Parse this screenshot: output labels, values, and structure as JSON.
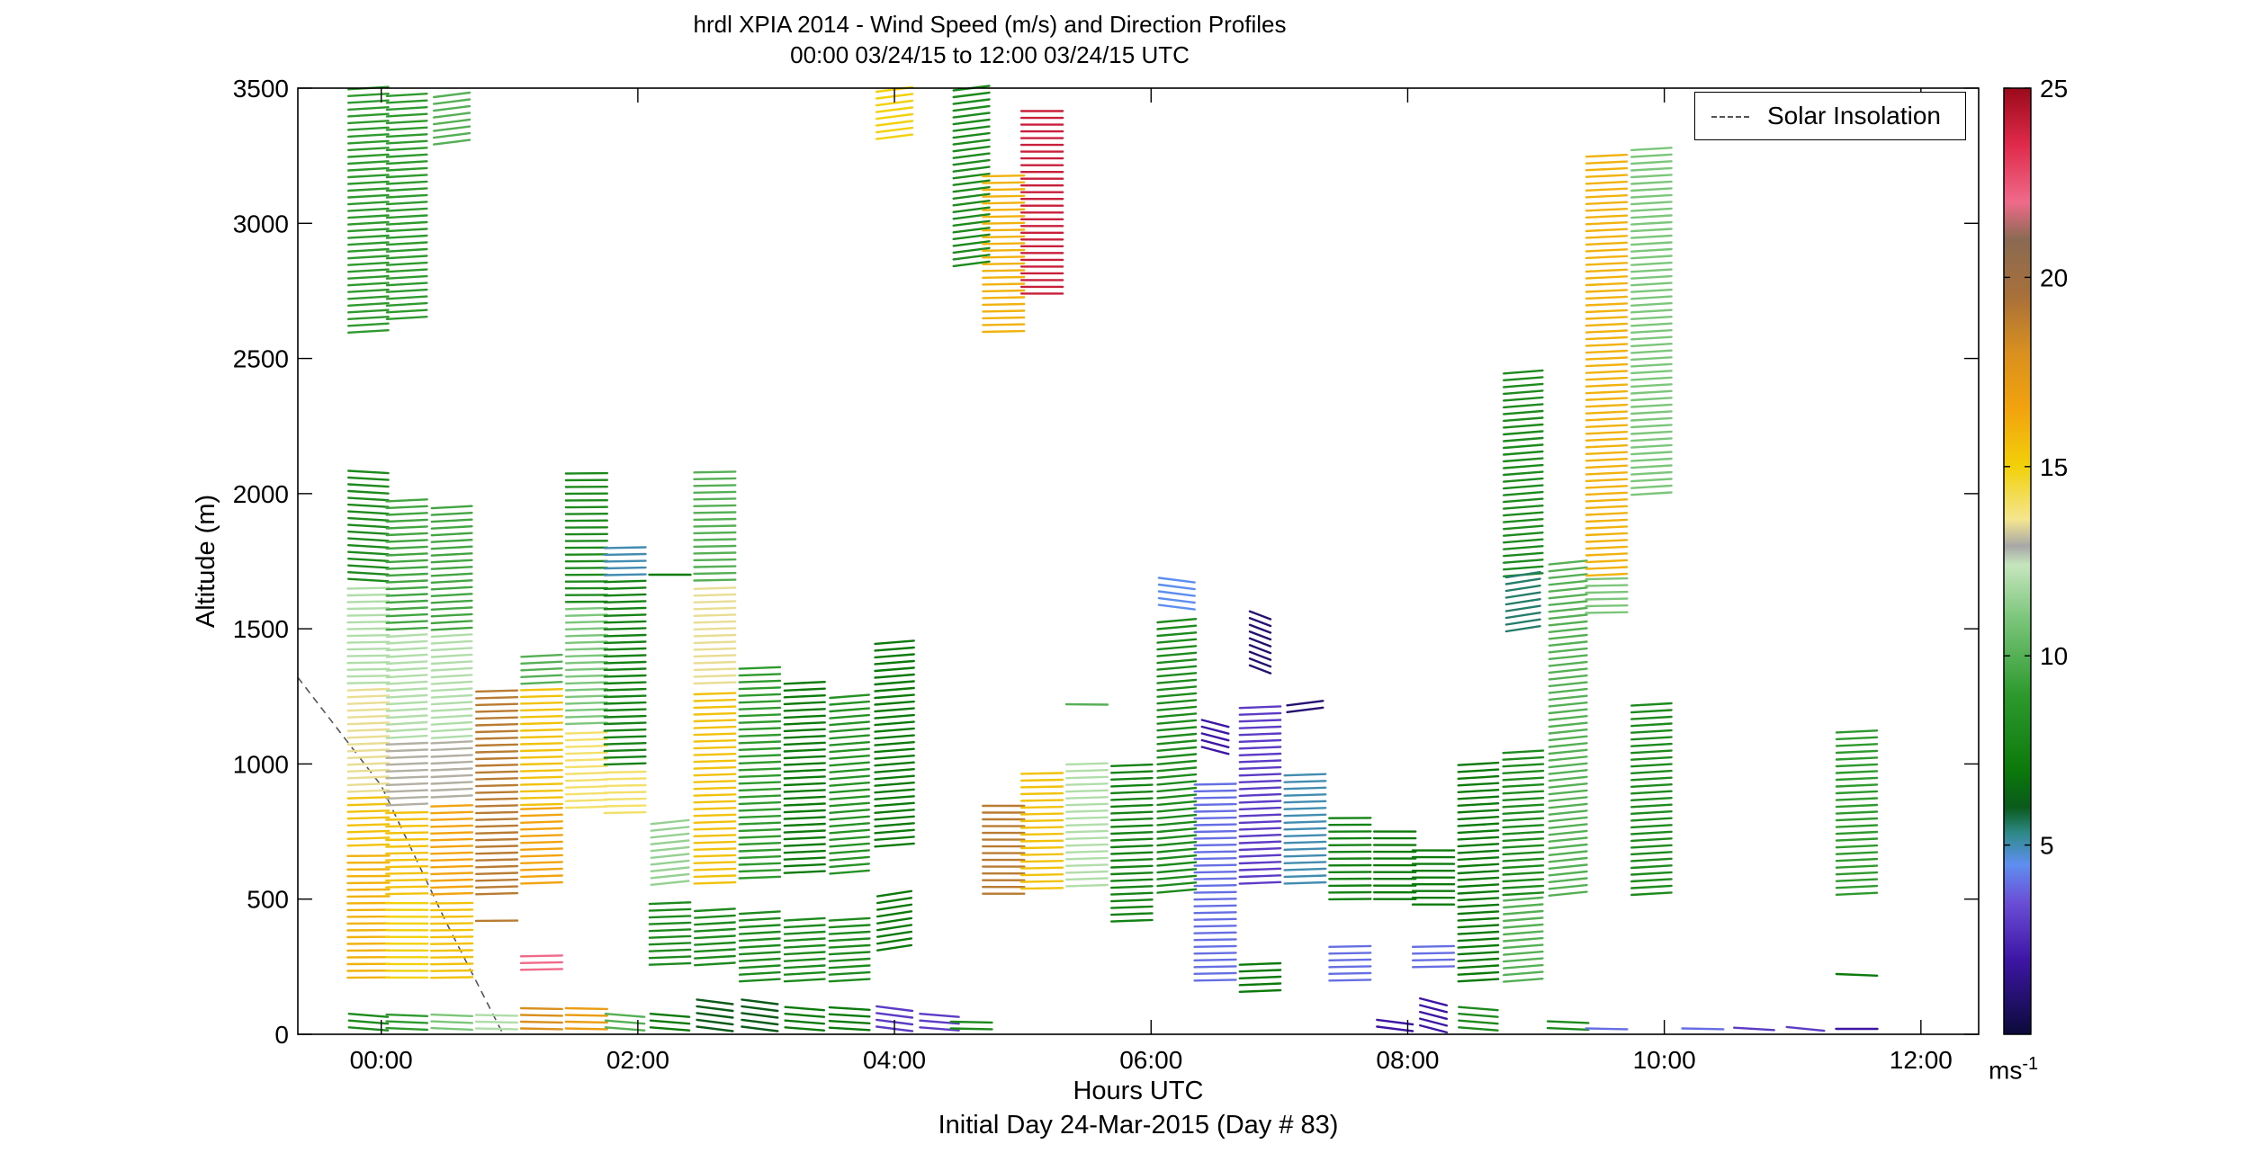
{
  "chart_data": {
    "type": "wind-barb-profile",
    "title": "hrdl XPIA 2014 - Wind Speed (m/s) and Direction Profiles",
    "subtitle": "00:00 03/24/15 to 12:00 03/24/15  UTC",
    "xlabel": "Hours UTC",
    "xlabel2": "Initial Day 24-Mar-2015 (Day # 83)",
    "ylabel": "Altitude (m)",
    "xlim": [
      -0.65,
      12.45
    ],
    "ylim": [
      0,
      3500
    ],
    "x_ticks": [
      0,
      2,
      4,
      6,
      8,
      10,
      12
    ],
    "x_tick_labels": [
      "00:00",
      "02:00",
      "04:00",
      "06:00",
      "08:00",
      "10:00",
      "12:00"
    ],
    "y_ticks": [
      0,
      500,
      1000,
      1500,
      2000,
      2500,
      3000,
      3500
    ],
    "y_tick_labels": [
      "0",
      "500",
      "1000",
      "1500",
      "2000",
      "2500",
      "3000",
      "3500"
    ],
    "legend": {
      "label": "Solar Insolation",
      "position": "top-right"
    },
    "colorbar": {
      "range": [
        0,
        25
      ],
      "ticks": [
        5,
        10,
        15,
        20,
        25
      ],
      "tick_labels": [
        "5",
        "10",
        "15",
        "20",
        "25"
      ],
      "unit_base": "ms",
      "unit_exp": "-1",
      "stops": [
        {
          "v": 0,
          "c": "#0b0a3a"
        },
        {
          "v": 2,
          "c": "#3e16a6"
        },
        {
          "v": 3.5,
          "c": "#6b4fd6"
        },
        {
          "v": 4.5,
          "c": "#5e8ff0"
        },
        {
          "v": 5.3,
          "c": "#2f8a8a"
        },
        {
          "v": 6,
          "c": "#0a5a1a"
        },
        {
          "v": 7,
          "c": "#0b7a0b"
        },
        {
          "v": 9,
          "c": "#2e9a2e"
        },
        {
          "v": 11,
          "c": "#7cc67c"
        },
        {
          "v": 12.4,
          "c": "#c6e6bd"
        },
        {
          "v": 12.9,
          "c": "#a7a7a7"
        },
        {
          "v": 13.6,
          "c": "#f4e690"
        },
        {
          "v": 15,
          "c": "#f2d10a"
        },
        {
          "v": 16.5,
          "c": "#f2a30e"
        },
        {
          "v": 18,
          "c": "#d9901e"
        },
        {
          "v": 19.5,
          "c": "#a8703a"
        },
        {
          "v": 21,
          "c": "#8a6a52"
        },
        {
          "v": 22,
          "c": "#f06a8a"
        },
        {
          "v": 23.5,
          "c": "#e02a4a"
        },
        {
          "v": 25,
          "c": "#9a0a1a"
        }
      ]
    },
    "solar_insolation": [
      [
        -0.65,
        1320
      ],
      [
        0,
        920
      ],
      [
        0.5,
        420
      ],
      [
        0.95,
        0
      ]
    ],
    "profiles": [
      {
        "t": -0.1,
        "segs": [
          [
            20,
            80,
            8,
            290
          ],
          [
            2600,
            3500,
            9,
            255
          ],
          [
            1680,
            2080,
            8,
            285
          ],
          [
            1300,
            1660,
            12,
            265
          ],
          [
            900,
            1290,
            13.5,
            260
          ],
          [
            700,
            880,
            15.5,
            262
          ],
          [
            210,
            680,
            16,
            268
          ]
        ]
      },
      {
        "t": 0.2,
        "segs": [
          [
            20,
            80,
            9,
            280
          ],
          [
            2650,
            3480,
            9,
            255
          ],
          [
            1500,
            1990,
            9.5,
            258
          ],
          [
            1100,
            1480,
            12,
            255
          ],
          [
            850,
            1080,
            13,
            260
          ],
          [
            520,
            830,
            15.5,
            265
          ],
          [
            210,
            490,
            15,
            270
          ]
        ]
      },
      {
        "t": 0.55,
        "segs": [
          [
            20,
            80,
            11,
            280
          ],
          [
            3300,
            3480,
            10,
            240
          ],
          [
            1500,
            1960,
            9.5,
            256
          ],
          [
            1100,
            1480,
            12,
            255
          ],
          [
            880,
            1080,
            13,
            258
          ],
          [
            520,
            860,
            16.5,
            262
          ],
          [
            210,
            490,
            15.5,
            266
          ]
        ]
      },
      {
        "t": 0.9,
        "segs": [
          [
            20,
            80,
            12,
            275
          ],
          [
            520,
            1280,
            19,
            263
          ],
          [
            420,
            440,
            19,
            268
          ]
        ]
      },
      {
        "t": 1.25,
        "segs": [
          [
            20,
            100,
            18,
            275
          ],
          [
            1300,
            1420,
            10,
            258
          ],
          [
            850,
            1280,
            15.5,
            263
          ],
          [
            560,
            840,
            16.5,
            262
          ],
          [
            240,
            300,
            22,
            265
          ]
        ]
      },
      {
        "t": 1.6,
        "segs": [
          [
            20,
            100,
            17,
            275
          ],
          [
            1600,
            2080,
            8,
            268
          ],
          [
            1150,
            1580,
            11,
            262
          ],
          [
            840,
            1130,
            14,
            262
          ]
        ]
      },
      {
        "t": 1.9,
        "segs": [
          [
            20,
            80,
            10,
            290
          ],
          [
            1700,
            1820,
            5,
            265
          ],
          [
            1000,
            1680,
            7.5,
            262
          ],
          [
            820,
            980,
            14,
            265
          ]
        ]
      },
      {
        "t": 2.25,
        "segs": [
          [
            20,
            80,
            7,
            290
          ],
          [
            1700,
            1700,
            7,
            270
          ],
          [
            560,
            800,
            11.5,
            245
          ],
          [
            260,
            500,
            8,
            260
          ]
        ]
      },
      {
        "t": 2.6,
        "segs": [
          [
            20,
            120,
            6,
            300
          ],
          [
            1680,
            2100,
            10,
            265
          ],
          [
            1300,
            1660,
            13.5,
            262
          ],
          [
            560,
            1280,
            15.5,
            262
          ],
          [
            260,
            480,
            8,
            255
          ]
        ]
      },
      {
        "t": 2.95,
        "segs": [
          [
            20,
            120,
            6,
            300
          ],
          [
            580,
            1360,
            9,
            260
          ],
          [
            200,
            460,
            8,
            255
          ]
        ]
      },
      {
        "t": 3.3,
        "segs": [
          [
            20,
            100,
            7,
            290
          ],
          [
            600,
            1300,
            7,
            258
          ],
          [
            200,
            440,
            8,
            255
          ]
        ]
      },
      {
        "t": 3.65,
        "segs": [
          [
            20,
            100,
            7,
            285
          ],
          [
            600,
            1260,
            8.5,
            250
          ],
          [
            200,
            440,
            8,
            255
          ]
        ]
      },
      {
        "t": 4.0,
        "segs": [
          [
            20,
            100,
            3,
            300
          ],
          [
            700,
            1460,
            7,
            250
          ],
          [
            320,
            520,
            7,
            235
          ],
          [
            3320,
            3500,
            15,
            240
          ]
        ]
      },
      {
        "t": 4.35,
        "segs": [
          [
            20,
            80,
            3,
            290
          ]
        ]
      },
      {
        "t": 4.6,
        "segs": [
          [
            2850,
            3500,
            8,
            240
          ],
          [
            20,
            60,
            8,
            275
          ]
        ]
      },
      {
        "t": 4.85,
        "segs": [
          [
            2600,
            3180,
            16,
            265
          ],
          [
            520,
            860,
            19,
            270
          ]
        ]
      },
      {
        "t": 5.15,
        "segs": [
          [
            2740,
            3420,
            24,
            270
          ],
          [
            540,
            980,
            15.5,
            265
          ]
        ]
      },
      {
        "t": 5.5,
        "segs": [
          [
            550,
            1020,
            12,
            262
          ],
          [
            1220,
            1220,
            10,
            272
          ]
        ]
      },
      {
        "t": 5.85,
        "segs": [
          [
            420,
            1000,
            7.5,
            260
          ]
        ]
      },
      {
        "t": 6.2,
        "segs": [
          [
            530,
            1550,
            8,
            248
          ],
          [
            1580,
            1680,
            4.5,
            300
          ]
        ]
      },
      {
        "t": 6.5,
        "segs": [
          [
            200,
            940,
            4,
            265
          ],
          [
            1050,
            1150,
            2,
            320
          ]
        ]
      },
      {
        "t": 6.85,
        "segs": [
          [
            560,
            1220,
            3,
            260
          ],
          [
            1350,
            1560,
            1,
            330
          ],
          [
            160,
            280,
            7,
            260
          ]
        ]
      },
      {
        "t": 7.2,
        "segs": [
          [
            560,
            960,
            5,
            262
          ],
          [
            1200,
            1240,
            1,
            240
          ]
        ]
      },
      {
        "t": 7.55,
        "segs": [
          [
            500,
            800,
            7.5,
            268
          ],
          [
            200,
            340,
            4,
            265
          ]
        ]
      },
      {
        "t": 7.9,
        "segs": [
          [
            20,
            60,
            2,
            300
          ],
          [
            500,
            770,
            7,
            270
          ]
        ]
      },
      {
        "t": 8.2,
        "segs": [
          [
            20,
            130,
            2,
            320
          ],
          [
            250,
            330,
            4,
            265
          ],
          [
            480,
            700,
            7,
            270
          ]
        ]
      },
      {
        "t": 8.55,
        "segs": [
          [
            200,
            1020,
            7,
            255
          ],
          [
            20,
            100,
            8,
            290
          ]
        ]
      },
      {
        "t": 8.9,
        "segs": [
          [
            1700,
            2450,
            8,
            250
          ],
          [
            1500,
            1700,
            5.5,
            235
          ],
          [
            520,
            1060,
            8,
            255
          ],
          [
            200,
            520,
            10,
            250
          ]
        ]
      },
      {
        "t": 9.25,
        "segs": [
          [
            520,
            1760,
            10,
            245
          ],
          [
            20,
            60,
            8,
            280
          ]
        ]
      },
      {
        "t": 9.55,
        "segs": [
          [
            1560,
            1700,
            11,
            265
          ],
          [
            1700,
            3250,
            16,
            258
          ],
          [
            20,
            20,
            4,
            275
          ]
        ]
      },
      {
        "t": 9.9,
        "segs": [
          [
            520,
            1230,
            8,
            255
          ],
          [
            2000,
            3280,
            11,
            255
          ]
        ]
      },
      {
        "t": 10.3,
        "segs": [
          [
            20,
            20,
            4,
            275
          ]
        ]
      },
      {
        "t": 10.7,
        "segs": [
          [
            20,
            20,
            3,
            285
          ]
        ]
      },
      {
        "t": 11.1,
        "segs": [
          [
            20,
            20,
            3,
            295
          ]
        ]
      },
      {
        "t": 11.5,
        "segs": [
          [
            520,
            1140,
            9,
            258
          ],
          [
            220,
            240,
            7,
            280
          ],
          [
            20,
            40,
            2,
            270
          ]
        ]
      }
    ]
  }
}
